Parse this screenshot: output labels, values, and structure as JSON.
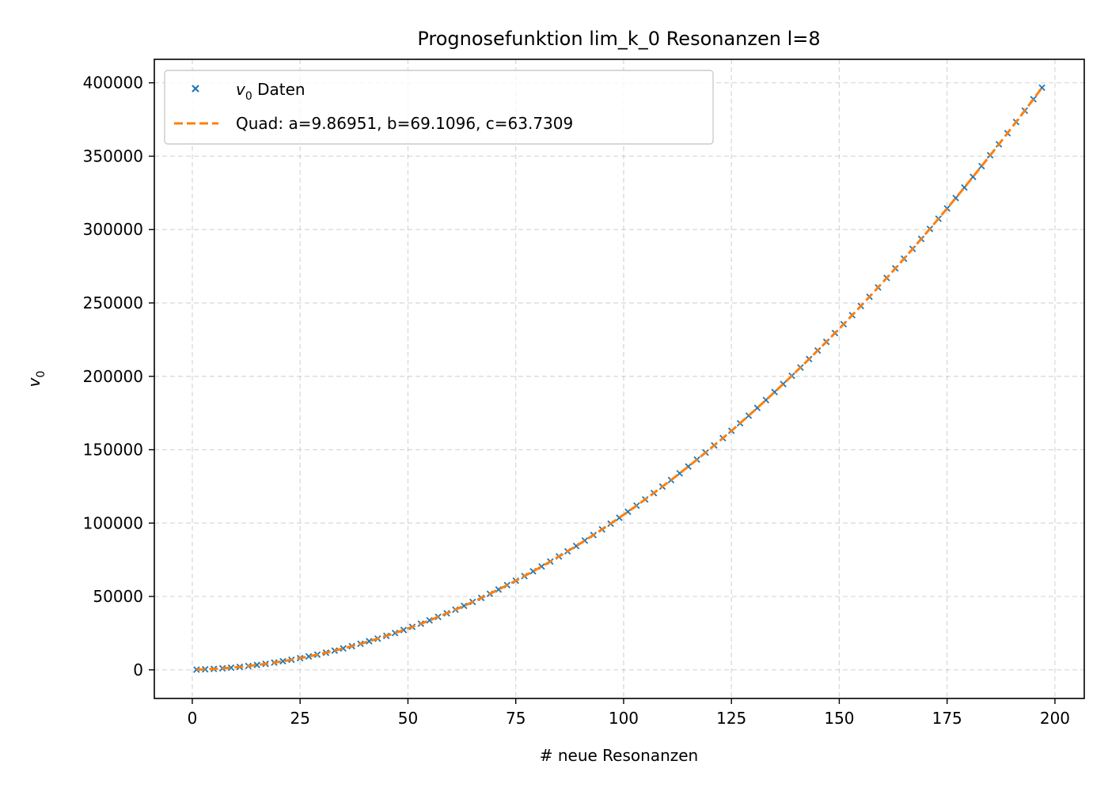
{
  "chart_data": {
    "type": "scatter",
    "title": "Prognosefunktion lim_k_0 Resonanzen l=8",
    "xlabel": "# neue Resonanzen",
    "ylabel": {
      "base": "v",
      "sub": "0"
    },
    "xlim": [
      -8.8,
      206.8
    ],
    "ylim": [
      -19500,
      416000
    ],
    "xticks": [
      "0",
      "25",
      "50",
      "75",
      "100",
      "125",
      "150",
      "175",
      "200"
    ],
    "xtick_values": [
      0,
      25,
      50,
      75,
      100,
      125,
      150,
      175,
      200
    ],
    "yticks": [
      "0",
      "50000",
      "100000",
      "150000",
      "200000",
      "250000",
      "300000",
      "350000",
      "400000"
    ],
    "ytick_values": [
      0,
      50000,
      100000,
      150000,
      200000,
      250000,
      300000,
      350000,
      400000
    ],
    "grid": true,
    "legend_position": "top-left",
    "series": [
      {
        "name_base": "v",
        "name_sub": "0",
        "name_suffix": " Daten",
        "kind": "scatter",
        "marker": "x",
        "color": "#1f77b4",
        "x_range": [
          1,
          197
        ],
        "x_step": 2,
        "model": {
          "a": 9.86951,
          "b": 69.1096,
          "c": 63.7309
        }
      },
      {
        "name": "Quad: a=9.86951, b=69.1096, c=63.7309",
        "kind": "line",
        "style": "dashed",
        "color": "#ff7f0e",
        "a": 9.86951,
        "b": 69.1096,
        "c": 63.7309,
        "x_range": [
          1,
          197
        ]
      }
    ]
  }
}
